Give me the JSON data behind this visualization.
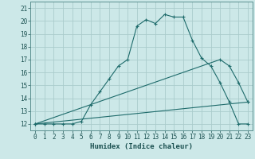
{
  "title": "",
  "xlabel": "Humidex (Indice chaleur)",
  "background_color": "#cce8e8",
  "grid_color": "#aacccc",
  "line_color": "#1e6b6b",
  "xlim": [
    -0.5,
    23.5
  ],
  "ylim": [
    11.5,
    21.5
  ],
  "yticks": [
    12,
    13,
    14,
    15,
    16,
    17,
    18,
    19,
    20,
    21
  ],
  "xticks": [
    0,
    1,
    2,
    3,
    4,
    5,
    6,
    7,
    8,
    9,
    10,
    11,
    12,
    13,
    14,
    15,
    16,
    17,
    18,
    19,
    20,
    21,
    22,
    23
  ],
  "series": [
    {
      "x": [
        0,
        1,
        2,
        3,
        4,
        5,
        6,
        7,
        8,
        9,
        10,
        11,
        12,
        13,
        14,
        15,
        16,
        17,
        18,
        19,
        20,
        21,
        22,
        23
      ],
      "y": [
        12.0,
        12.0,
        12.0,
        12.0,
        12.0,
        12.2,
        13.5,
        14.5,
        15.5,
        16.5,
        17.0,
        19.6,
        20.1,
        19.8,
        20.5,
        20.3,
        20.3,
        18.5,
        17.1,
        16.5,
        15.2,
        13.7,
        12.0,
        12.0
      ]
    },
    {
      "x": [
        0,
        20,
        21,
        22,
        23
      ],
      "y": [
        12.0,
        17.0,
        16.5,
        15.2,
        13.7
      ]
    },
    {
      "x": [
        0,
        23
      ],
      "y": [
        12.0,
        13.7
      ]
    }
  ]
}
